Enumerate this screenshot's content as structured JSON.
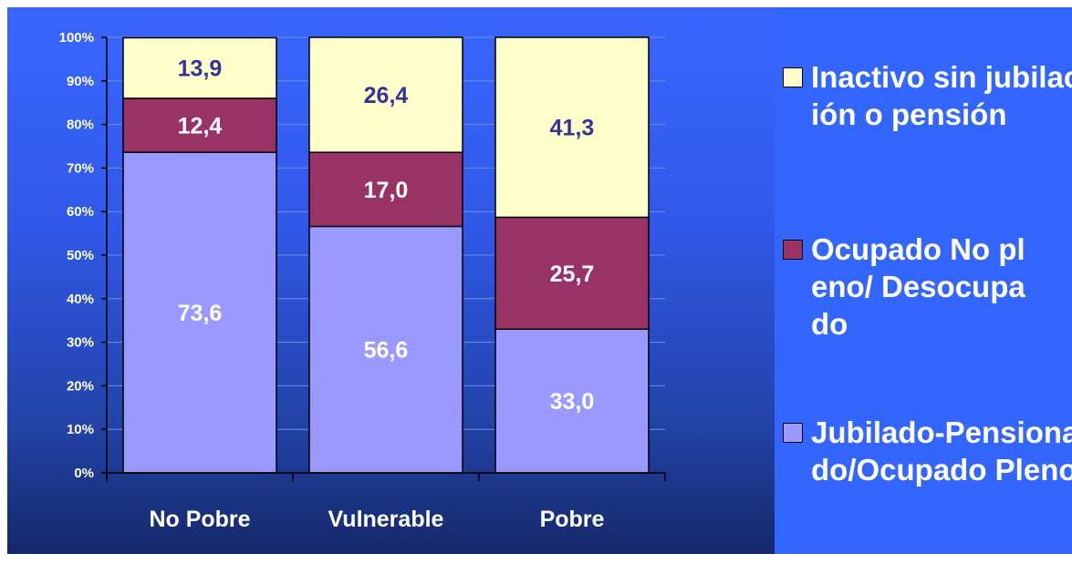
{
  "chart_data": {
    "type": "bar",
    "stacked": true,
    "categories": [
      "No Pobre",
      "Vulnerable",
      "Pobre"
    ],
    "series": [
      {
        "name": "Jubilado-Pensionado/Ocupado Pleno",
        "values": [
          73.6,
          56.6,
          33.0
        ],
        "labels": [
          "73,6",
          "56,6",
          "33,0"
        ],
        "color": "#9999ff",
        "label_color": "#ffffff"
      },
      {
        "name": "Ocupado No pleno/ Desocupado",
        "values": [
          12.4,
          17.0,
          25.7
        ],
        "labels": [
          "12,4",
          "17,0",
          "25,7"
        ],
        "color": "#993366",
        "label_color": "#ffffff"
      },
      {
        "name": "Inactivo sin jubilación o pensión",
        "values": [
          13.9,
          26.4,
          41.3
        ],
        "labels": [
          "13,9",
          "26,4",
          "41,3"
        ],
        "color": "#ffffcc",
        "label_color": "#333399"
      }
    ],
    "ylim": [
      0,
      100
    ],
    "yticks": [
      "0%",
      "10%",
      "20%",
      "30%",
      "40%",
      "50%",
      "60%",
      "70%",
      "80%",
      "90%",
      "100%"
    ],
    "grid": true,
    "legend_position": "right",
    "title": "",
    "xlabel": "",
    "ylabel": ""
  },
  "legend": [
    {
      "label": "Inactivo sin jubilación o pensión",
      "color": "#ffffcc"
    },
    {
      "label": "Ocupado No pleno/ Desocupado",
      "color": "#993366"
    },
    {
      "label": "Jubilado-Pensionado/Ocupado Pleno",
      "color": "#9999ff"
    }
  ]
}
